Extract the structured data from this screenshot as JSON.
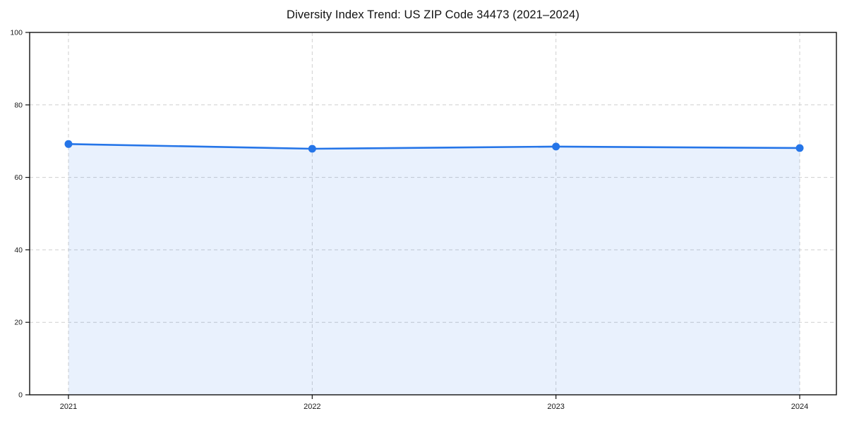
{
  "chart_data": {
    "type": "area",
    "title": "Diversity Index Trend: US ZIP Code 34473 (2021–2024)",
    "x": [
      2021,
      2022,
      2023,
      2024
    ],
    "xticks": [
      "2021",
      "2022",
      "2023",
      "2024"
    ],
    "series": [
      {
        "name": "Diversity Index",
        "values": [
          69.2,
          67.9,
          68.5,
          68.1
        ]
      }
    ],
    "xlabel": "",
    "ylabel": "",
    "ylim": [
      0,
      100
    ],
    "yticks": [
      0,
      20,
      40,
      60,
      80,
      100
    ],
    "grid": "dashed, horizontal and vertical",
    "legend": "none",
    "colors": {
      "line": "#2575e8",
      "fill": "rgba(37,117,232,0.10)",
      "grid": "#cfcfcf",
      "axis": "#111111",
      "tick_text": "#1a1a1a",
      "background": "#ffffff"
    }
  }
}
